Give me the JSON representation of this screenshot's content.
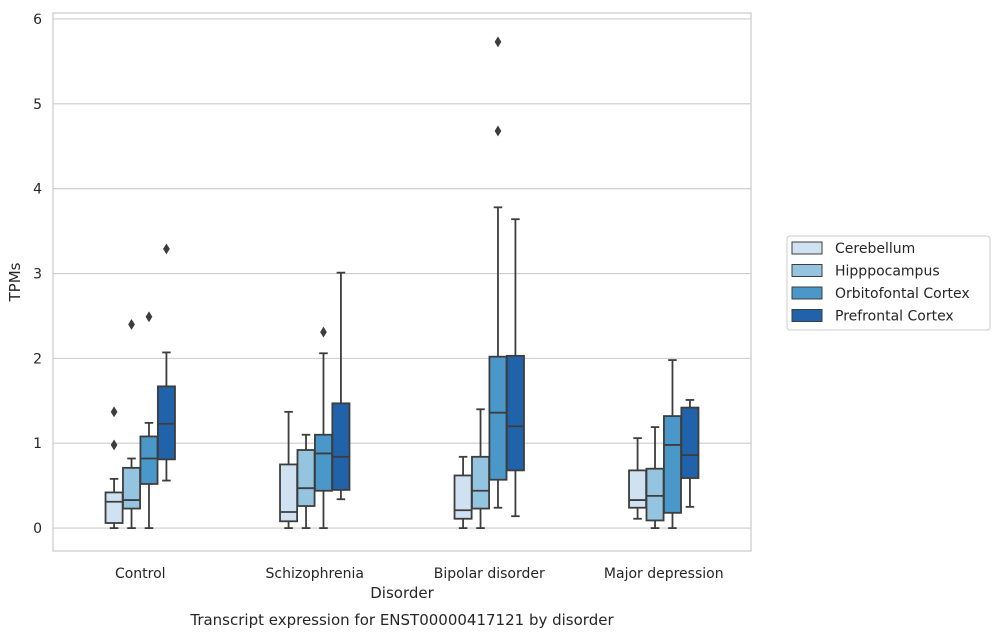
{
  "chart_data": {
    "type": "boxplot",
    "xlabel": "Disorder",
    "ylabel": "TPMs",
    "caption": "Transcript expression for ENST00000417121 by disorder",
    "ylim": [
      -0.27,
      6.07
    ],
    "yticks": [
      "0",
      "1",
      "2",
      "3",
      "4",
      "5",
      "6"
    ],
    "grid": "horizontal",
    "legend_position": "right",
    "categories": [
      "Control",
      "Schizophrenia",
      "Bipolar disorder",
      "Major depression"
    ],
    "series": [
      {
        "name": "Cerebellum",
        "color": "#d0e1f2",
        "boxes": [
          {
            "whisker_low": 0.0,
            "q1": 0.06,
            "median": 0.31,
            "q3": 0.42,
            "whisker_high": 0.58,
            "outliers": [
              0.98,
              1.37
            ]
          },
          {
            "whisker_low": 0.0,
            "q1": 0.08,
            "median": 0.19,
            "q3": 0.75,
            "whisker_high": 1.37,
            "outliers": []
          },
          {
            "whisker_low": 0.0,
            "q1": 0.11,
            "median": 0.21,
            "q3": 0.62,
            "whisker_high": 0.84,
            "outliers": []
          },
          {
            "whisker_low": 0.11,
            "q1": 0.24,
            "median": 0.33,
            "q3": 0.68,
            "whisker_high": 1.06,
            "outliers": []
          }
        ]
      },
      {
        "name": "Hipppocampus",
        "color": "#94c4df",
        "boxes": [
          {
            "whisker_low": 0.0,
            "q1": 0.23,
            "median": 0.33,
            "q3": 0.71,
            "whisker_high": 0.82,
            "outliers": [
              2.4
            ]
          },
          {
            "whisker_low": 0.0,
            "q1": 0.26,
            "median": 0.47,
            "q3": 0.92,
            "whisker_high": 1.1,
            "outliers": []
          },
          {
            "whisker_low": 0.0,
            "q1": 0.23,
            "median": 0.44,
            "q3": 0.84,
            "whisker_high": 1.4,
            "outliers": []
          },
          {
            "whisker_low": 0.0,
            "q1": 0.09,
            "median": 0.38,
            "q3": 0.7,
            "whisker_high": 1.19,
            "outliers": []
          }
        ]
      },
      {
        "name": "Orbitofontal Cortex",
        "color": "#4a98c9",
        "boxes": [
          {
            "whisker_low": 0.0,
            "q1": 0.52,
            "median": 0.82,
            "q3": 1.08,
            "whisker_high": 1.24,
            "outliers": [
              2.49
            ]
          },
          {
            "whisker_low": 0.0,
            "q1": 0.44,
            "median": 0.88,
            "q3": 1.1,
            "whisker_high": 2.06,
            "outliers": [
              2.31
            ]
          },
          {
            "whisker_low": 0.24,
            "q1": 0.57,
            "median": 1.36,
            "q3": 2.02,
            "whisker_high": 3.78,
            "outliers": [
              4.68,
              5.73
            ]
          },
          {
            "whisker_low": 0.0,
            "q1": 0.18,
            "median": 0.98,
            "q3": 1.32,
            "whisker_high": 1.98,
            "outliers": []
          }
        ]
      },
      {
        "name": "Prefrontal Cortex",
        "color": "#2163aa",
        "boxes": [
          {
            "whisker_low": 0.56,
            "q1": 0.81,
            "median": 1.23,
            "q3": 1.67,
            "whisker_high": 2.07,
            "outliers": [
              3.29
            ]
          },
          {
            "whisker_low": 0.34,
            "q1": 0.45,
            "median": 0.84,
            "q3": 1.47,
            "whisker_high": 3.01,
            "outliers": []
          },
          {
            "whisker_low": 0.14,
            "q1": 0.68,
            "median": 1.2,
            "q3": 2.03,
            "whisker_high": 3.64,
            "outliers": []
          },
          {
            "whisker_low": 0.25,
            "q1": 0.59,
            "median": 0.86,
            "q3": 1.42,
            "whisker_high": 1.51,
            "outliers": []
          }
        ]
      }
    ]
  }
}
